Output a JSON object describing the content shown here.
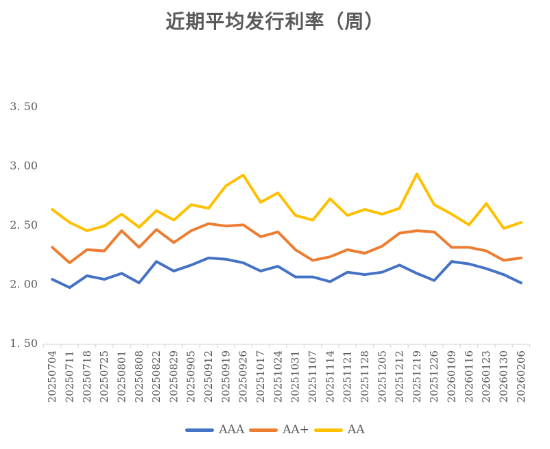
{
  "title": "近期平均发行利率（周）",
  "colors": {
    "aaa_line": "#4472C4",
    "aa_plus_line": "#ED7D31",
    "aa_line": "#FFC000",
    "axis": "#D9D9D9",
    "label_text": "#595959"
  },
  "y_axis": {
    "tick_labels": [
      "3. 50",
      "3. 00",
      "2. 50",
      "2. 00",
      "1. 50"
    ],
    "tick_values": [
      3.5,
      3.0,
      2.5,
      2.0,
      1.5
    ]
  },
  "chart_data": {
    "type": "line",
    "title": "近期平均发行利率（周）",
    "xlabel": "",
    "ylabel": "",
    "ylim": [
      1.5,
      3.5
    ],
    "y_step": 0.5,
    "grid": false,
    "legend_position": "bottom",
    "categories": [
      "20250704",
      "20250711",
      "20250718",
      "20250725",
      "20250801",
      "20250808",
      "20250822",
      "20250829",
      "20250905",
      "20250912",
      "20250919",
      "20250926",
      "20251017",
      "20251024",
      "20251031",
      "20251107",
      "20251114",
      "20251121",
      "20251128",
      "20251205",
      "20251212",
      "20251219",
      "20251226",
      "20260109",
      "20260116",
      "20260123",
      "20260130",
      "20260206"
    ],
    "series": [
      {
        "name": "AAA",
        "color": "#4472C4",
        "values": [
          2.04,
          1.97,
          2.07,
          2.04,
          2.09,
          2.01,
          2.19,
          2.11,
          2.16,
          2.22,
          2.21,
          2.18,
          2.11,
          2.15,
          2.06,
          2.06,
          2.02,
          2.1,
          2.08,
          2.1,
          2.16,
          2.09,
          2.03,
          2.19,
          2.17,
          2.13,
          2.08,
          2.01
        ]
      },
      {
        "name": "AA+",
        "color": "#ED7D31",
        "values": [
          2.31,
          2.18,
          2.29,
          2.28,
          2.45,
          2.31,
          2.46,
          2.35,
          2.45,
          2.51,
          2.49,
          2.5,
          2.4,
          2.44,
          2.29,
          2.2,
          2.23,
          2.29,
          2.26,
          2.32,
          2.43,
          2.45,
          2.44,
          2.31,
          2.31,
          2.28,
          2.2,
          2.22
        ]
      },
      {
        "name": "AA",
        "color": "#FFC000",
        "values": [
          2.63,
          2.52,
          2.45,
          2.49,
          2.59,
          2.48,
          2.62,
          2.54,
          2.67,
          2.64,
          2.83,
          2.92,
          2.69,
          2.77,
          2.58,
          2.54,
          2.72,
          2.58,
          2.63,
          2.59,
          2.64,
          2.93,
          2.67,
          2.59,
          2.5,
          2.68,
          2.47,
          2.52
        ]
      }
    ]
  },
  "legend": {
    "items": [
      {
        "label": "AAA",
        "color": "#4472C4"
      },
      {
        "label": "AA+",
        "color": "#ED7D31"
      },
      {
        "label": "AA",
        "color": "#FFC000"
      }
    ]
  }
}
